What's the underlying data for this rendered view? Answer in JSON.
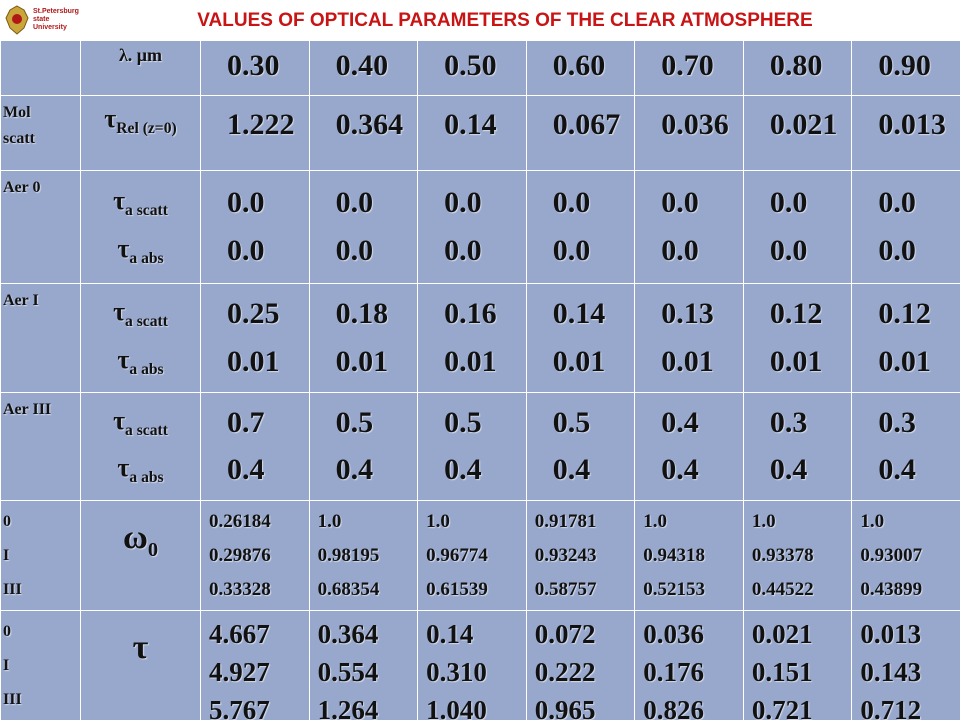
{
  "header": {
    "logo": [
      "St.Petersburg",
      "state",
      "University"
    ],
    "title": "VALUES OF OPTICAL  PARAMETERS OF THE CLEAR  ATMOSPHERE"
  },
  "table": {
    "header_row": {
      "param": "λ. μm",
      "values": [
        "0.30",
        "0.40",
        "0.50",
        "0.60",
        "0.70",
        "0.80",
        "0.90"
      ]
    },
    "rows": [
      {
        "label": [
          "Mol",
          "scatt"
        ],
        "params": [
          {
            "symbol": "τ",
            "sub": "Rel (z=0)"
          }
        ],
        "values": [
          [
            "1.222"
          ],
          [
            "0.364"
          ],
          [
            "0.14"
          ],
          [
            "0.067"
          ],
          [
            "0.036"
          ],
          [
            "0.021"
          ],
          [
            "0.013"
          ]
        ]
      },
      {
        "label": [
          "Aer  0"
        ],
        "params": [
          {
            "symbol": "τ",
            "sub": "a scatt"
          },
          {
            "symbol": "τ",
            "sub": "a abs"
          }
        ],
        "values": [
          [
            "0.0",
            "0.0"
          ],
          [
            "0.0",
            "0.0"
          ],
          [
            "0.0",
            "0.0"
          ],
          [
            "0.0",
            "0.0"
          ],
          [
            "0.0",
            "0.0"
          ],
          [
            "0.0",
            "0.0"
          ],
          [
            "0.0",
            "0.0"
          ]
        ]
      },
      {
        "label": [
          "Aer  I"
        ],
        "params": [
          {
            "symbol": "τ",
            "sub": "a scatt"
          },
          {
            "symbol": "τ",
            "sub": "a abs"
          }
        ],
        "values": [
          [
            "0.25",
            "0.01"
          ],
          [
            "0.18",
            "0.01"
          ],
          [
            "0.16",
            "0.01"
          ],
          [
            "0.14",
            "0.01"
          ],
          [
            "0.13",
            "0.01"
          ],
          [
            "0.12",
            "0.01"
          ],
          [
            "0.12",
            "0.01"
          ]
        ]
      },
      {
        "label": [
          "Aer III"
        ],
        "params": [
          {
            "symbol": "τ",
            "sub": "a scatt"
          },
          {
            "symbol": "τ",
            "sub": "a abs"
          }
        ],
        "values": [
          [
            "0.7",
            "0.4"
          ],
          [
            "0.5",
            "0.4"
          ],
          [
            "0.5",
            "0.4"
          ],
          [
            "0.5",
            "0.4"
          ],
          [
            "0.4",
            "0.4"
          ],
          [
            "0.3",
            "0.4"
          ],
          [
            "0.3",
            "0.4"
          ]
        ]
      },
      {
        "label": [
          "0",
          "I",
          "III"
        ],
        "params": [
          {
            "symbol": "ω",
            "sub": "0"
          }
        ],
        "values": [
          [
            "0.26184",
            "0.29876",
            "0.33328"
          ],
          [
            "1.0",
            "0.98195",
            "0.68354"
          ],
          [
            "1.0",
            "0.96774",
            "0.61539"
          ],
          [
            "0.91781",
            "0.93243",
            "0.58757"
          ],
          [
            "1.0",
            "0.94318",
            "0.52153"
          ],
          [
            "1.0",
            "0.93378",
            "0.44522"
          ],
          [
            "1.0",
            "0.93007",
            "0.43899"
          ]
        ]
      },
      {
        "label": [
          "0",
          "I",
          "III"
        ],
        "params": [
          {
            "symbol": "τ"
          }
        ],
        "values": [
          [
            "4.667",
            "4.927",
            "5.767"
          ],
          [
            "0.364",
            "0.554",
            "1.264"
          ],
          [
            "0.14",
            "0.310",
            "1.040"
          ],
          [
            "0.072",
            "0.222",
            "0.965"
          ],
          [
            "0.036",
            "0.176",
            "0.826"
          ],
          [
            "0.021",
            "0.151",
            "0.721"
          ],
          [
            "0.013",
            "0.143",
            "0.712"
          ]
        ]
      }
    ]
  }
}
